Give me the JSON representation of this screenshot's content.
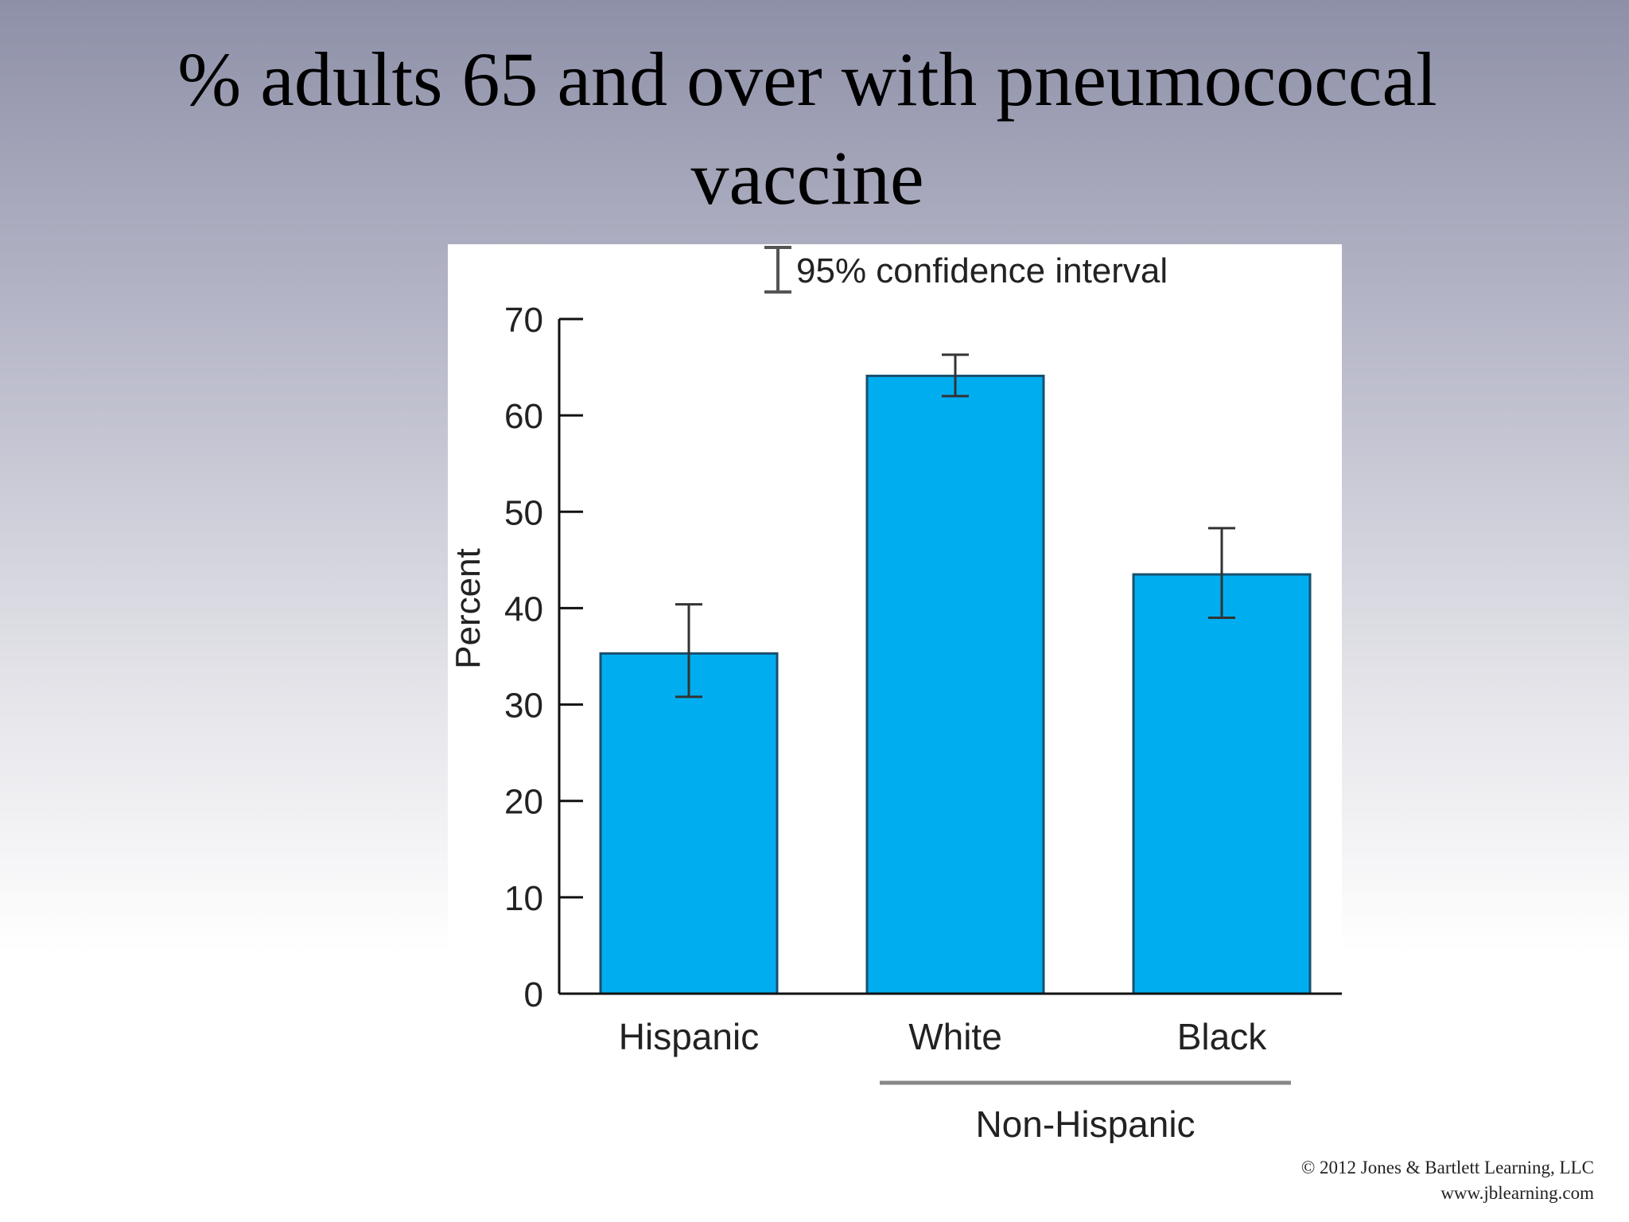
{
  "slide": {
    "title": "% adults 65 and over with pneumococcal vaccine",
    "credit_line1": "© 2012 Jones & Bartlett Learning, LLC",
    "credit_line2": "www.jblearning.com"
  },
  "chart_data": {
    "type": "bar",
    "title": "% adults 65 and over with pneumococcal vaccine",
    "ylabel": "Percent",
    "xlabel": "",
    "ylim": [
      0,
      70
    ],
    "yticks": [
      0,
      10,
      20,
      30,
      40,
      50,
      60,
      70
    ],
    "categories": [
      "Hispanic",
      "White",
      "Black"
    ],
    "values": [
      35.3,
      64.1,
      43.5
    ],
    "ci_low": [
      30.8,
      62.0,
      39.0
    ],
    "ci_high": [
      40.4,
      66.3,
      48.3
    ],
    "legend": {
      "label": "95% confidence interval",
      "placement": "top"
    },
    "group_label": {
      "text": "Non-Hispanic",
      "categories": [
        "White",
        "Black"
      ]
    },
    "bar_color": "#00aeef",
    "bar_edge_color": "#1a4f6e",
    "grid": false
  }
}
